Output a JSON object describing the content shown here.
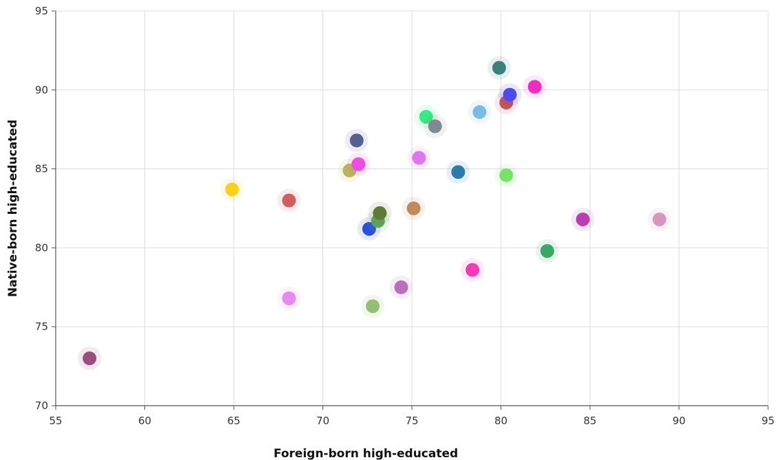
{
  "chart_data": {
    "type": "scatter",
    "xlabel": "Foreign-born high-educated",
    "ylabel": "Native-born high-educated",
    "xlim": [
      55,
      95
    ],
    "ylim": [
      70,
      95
    ],
    "x_ticks": [
      55,
      60,
      65,
      70,
      75,
      80,
      85,
      90,
      95
    ],
    "y_ticks": [
      70,
      75,
      80,
      85,
      90,
      95
    ],
    "grid": true,
    "points": [
      {
        "x": 56.9,
        "y": 73.0,
        "color": "#9b4f7f"
      },
      {
        "x": 64.9,
        "y": 83.7,
        "color": "#f7d11e"
      },
      {
        "x": 68.1,
        "y": 83.0,
        "color": "#d05f5f"
      },
      {
        "x": 68.1,
        "y": 76.8,
        "color": "#e58af0"
      },
      {
        "x": 71.5,
        "y": 84.9,
        "color": "#bab55a"
      },
      {
        "x": 71.9,
        "y": 86.8,
        "color": "#56608e"
      },
      {
        "x": 72.0,
        "y": 85.3,
        "color": "#ee4ee0"
      },
      {
        "x": 72.6,
        "y": 81.2,
        "color": "#2a4fde"
      },
      {
        "x": 72.8,
        "y": 76.3,
        "color": "#95bf76"
      },
      {
        "x": 73.1,
        "y": 81.7,
        "color": "#62a35a"
      },
      {
        "x": 73.2,
        "y": 82.2,
        "color": "#5f7a36"
      },
      {
        "x": 74.4,
        "y": 77.5,
        "color": "#b96fb9"
      },
      {
        "x": 75.1,
        "y": 82.5,
        "color": "#c08a5a"
      },
      {
        "x": 75.4,
        "y": 85.7,
        "color": "#dd77ef"
      },
      {
        "x": 75.8,
        "y": 88.3,
        "color": "#39e886"
      },
      {
        "x": 76.3,
        "y": 87.7,
        "color": "#808a92"
      },
      {
        "x": 77.6,
        "y": 84.8,
        "color": "#2d7bab"
      },
      {
        "x": 78.4,
        "y": 78.6,
        "color": "#f43bb6"
      },
      {
        "x": 78.8,
        "y": 88.6,
        "color": "#7bbde0"
      },
      {
        "x": 79.9,
        "y": 91.4,
        "color": "#3b8079"
      },
      {
        "x": 80.3,
        "y": 89.2,
        "color": "#c65555"
      },
      {
        "x": 80.3,
        "y": 84.6,
        "color": "#79e06a"
      },
      {
        "x": 80.5,
        "y": 89.7,
        "color": "#4d4bf0"
      },
      {
        "x": 81.9,
        "y": 90.2,
        "color": "#ee2ec2"
      },
      {
        "x": 82.6,
        "y": 79.8,
        "color": "#3aa865"
      },
      {
        "x": 84.6,
        "y": 81.8,
        "color": "#b93fac"
      },
      {
        "x": 88.9,
        "y": 81.8,
        "color": "#d996bd"
      }
    ]
  }
}
